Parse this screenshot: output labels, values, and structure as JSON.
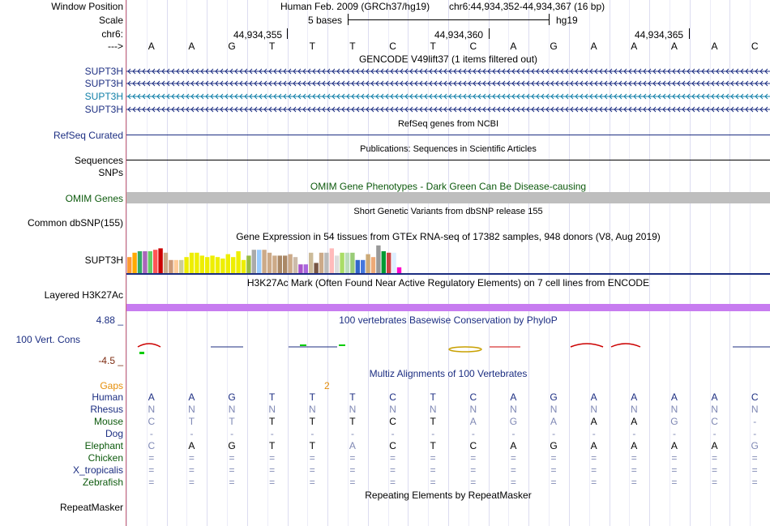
{
  "header": {
    "window_position_label": "Window Position",
    "scale_label": "Scale",
    "chrom_label": "chr6:",
    "arrow_label": "--->",
    "assembly": "Human Feb. 2009 (GRCh37/hg19)",
    "position": "chr6:44,934,352-44,934,367 (16 bp)",
    "scale_text": "5 bases",
    "db": "hg19",
    "ticks": [
      "44,934,355",
      "44,934,360",
      "44,934,365"
    ]
  },
  "sequence": [
    "A",
    "A",
    "G",
    "T",
    "T",
    "T",
    "C",
    "T",
    "C",
    "A",
    "G",
    "A",
    "A",
    "A",
    "A",
    "C"
  ],
  "gencode": {
    "title": "GENCODE V49lift37 (1 items filtered out)",
    "genes": [
      {
        "label": "SUPT3H",
        "color": "#1c2e82"
      },
      {
        "label": "SUPT3H",
        "color": "#1c2e82"
      },
      {
        "label": "SUPT3H",
        "color": "#0e7ea7"
      },
      {
        "label": "SUPT3H",
        "color": "#1c2e82"
      }
    ]
  },
  "refseq": {
    "title": "RefSeq genes from NCBI",
    "label": "RefSeq Curated"
  },
  "publications": {
    "title": "Publications: Sequences in Scientific Articles",
    "label1": "Sequences",
    "label2": "SNPs"
  },
  "omim": {
    "title": "OMIM Gene Phenotypes - Dark Green Can Be Disease-causing",
    "label": "OMIM Genes"
  },
  "dbsnp": {
    "title": "Short Genetic Variants from dbSNP release 155",
    "label": "Common dbSNP(155)"
  },
  "gtex": {
    "title": "Gene Expression in 54 tissues from GTEx RNA-seq of 17382 samples, 948 donors (V8, Aug 2019)",
    "label": "SUPT3H",
    "bars": [
      {
        "c": "#ff9933",
        "v": 0.55
      },
      {
        "c": "#ffaa00",
        "v": 0.7
      },
      {
        "c": "#33aa66",
        "v": 0.75
      },
      {
        "c": "#aa66bb",
        "v": 0.75
      },
      {
        "c": "#66cc66",
        "v": 0.75
      },
      {
        "c": "#ff5555",
        "v": 0.8
      },
      {
        "c": "#cc0000",
        "v": 0.85
      },
      {
        "c": "#ccaa88",
        "v": 0.7
      },
      {
        "c": "#cc9977",
        "v": 0.45
      },
      {
        "c": "#ffcc99",
        "v": 0.45
      },
      {
        "c": "#cccc99",
        "v": 0.45
      },
      {
        "c": "#eeee00",
        "v": 0.55
      },
      {
        "c": "#eeee00",
        "v": 0.7
      },
      {
        "c": "#eeee00",
        "v": 0.7
      },
      {
        "c": "#eeee00",
        "v": 0.6
      },
      {
        "c": "#eeee00",
        "v": 0.55
      },
      {
        "c": "#eeee00",
        "v": 0.6
      },
      {
        "c": "#eeee00",
        "v": 0.55
      },
      {
        "c": "#eeee00",
        "v": 0.5
      },
      {
        "c": "#eeee00",
        "v": 0.65
      },
      {
        "c": "#eeee00",
        "v": 0.55
      },
      {
        "c": "#eeee00",
        "v": 0.75
      },
      {
        "c": "#eeee00",
        "v": 0.45
      },
      {
        "c": "#99bb44",
        "v": 0.6
      },
      {
        "c": "#aaaaaa",
        "v": 0.8
      },
      {
        "c": "#99ccff",
        "v": 0.8
      },
      {
        "c": "#ccaa88",
        "v": 0.8
      },
      {
        "c": "#ccaa88",
        "v": 0.7
      },
      {
        "c": "#ccaa88",
        "v": 0.6
      },
      {
        "c": "#aa8866",
        "v": 0.6
      },
      {
        "c": "#aa8866",
        "v": 0.6
      },
      {
        "c": "#ccaa88",
        "v": 0.65
      },
      {
        "c": "#ccbbaa",
        "v": 0.55
      },
      {
        "c": "#aa55cc",
        "v": 0.3
      },
      {
        "c": "#aa66dd",
        "v": 0.3
      },
      {
        "c": "#ccbb99",
        "v": 0.7
      },
      {
        "c": "#775544",
        "v": 0.35
      },
      {
        "c": "#ccaa88",
        "v": 0.7
      },
      {
        "c": "#bbbbbb",
        "v": 0.7
      },
      {
        "c": "#ffbbbb",
        "v": 0.85
      },
      {
        "c": "#dddddd",
        "v": 0.6
      },
      {
        "c": "#aadd66",
        "v": 0.7
      },
      {
        "c": "#bbddbb",
        "v": 0.7
      },
      {
        "c": "#99cc77",
        "v": 0.7
      },
      {
        "c": "#3366cc",
        "v": 0.45
      },
      {
        "c": "#4477dd",
        "v": 0.45
      },
      {
        "c": "#ccaa77",
        "v": 0.65
      },
      {
        "c": "#eeaa77",
        "v": 0.55
      },
      {
        "c": "#999999",
        "v": 0.95
      },
      {
        "c": "#009933",
        "v": 0.75
      },
      {
        "c": "#cc4444",
        "v": 0.7
      },
      {
        "c": "#ddeeff",
        "v": 0.7
      },
      {
        "c": "#ff00cc",
        "v": 0.2
      },
      {
        "c": "#ffffff",
        "v": 0.0
      }
    ]
  },
  "h3k27ac": {
    "title": "H3K27Ac Mark (Often Found Near Active Regulatory Elements) on 7 cell lines from ENCODE",
    "label": "Layered H3K27Ac"
  },
  "phylop": {
    "title": "100 vertebrates Basewise Conservation by PhyloP",
    "label": "100 Vert. Cons",
    "max": "4.88 _",
    "min": "-4.5 _"
  },
  "multiz": {
    "title": "Multiz Alignments of 100 Vertebrates",
    "gaps_label": "Gaps",
    "gap_count": "2",
    "species": [
      {
        "name": "Human",
        "color": "#1c2e82",
        "bases": [
          "A",
          "A",
          "G",
          "T",
          "T",
          "T",
          "C",
          "T",
          "C",
          "A",
          "G",
          "A",
          "A",
          "A",
          "A",
          "C"
        ]
      },
      {
        "name": "Rhesus",
        "color": "#1c2e82",
        "bases": [
          "N",
          "N",
          "N",
          "N",
          "N",
          "N",
          "N",
          "N",
          "N",
          "N",
          "N",
          "N",
          "N",
          "N",
          "N",
          "N"
        ]
      },
      {
        "name": "Mouse",
        "color": "#0d5a0d",
        "bases": [
          "C",
          "T",
          "T",
          "T",
          "T",
          "T",
          "C",
          "T",
          "A",
          "G",
          "A",
          "A",
          "A",
          "G",
          "C",
          "-"
        ]
      },
      {
        "name": "Dog",
        "color": "#1c2e82",
        "bases": [
          "-",
          "-",
          "-",
          "-",
          "-",
          "-",
          "-",
          "-",
          "-",
          "-",
          "-",
          "-",
          "-",
          "-",
          "-",
          "-"
        ]
      },
      {
        "name": "Elephant",
        "color": "#0d5a0d",
        "bases": [
          "C",
          "A",
          "G",
          "T",
          "T",
          "A",
          "C",
          "T",
          "C",
          "A",
          "G",
          "A",
          "A",
          "A",
          "A",
          "G"
        ]
      },
      {
        "name": "Chicken",
        "color": "#0d5a0d",
        "bases": [
          "=",
          "=",
          "=",
          "=",
          "=",
          "=",
          "=",
          "=",
          "=",
          "=",
          "=",
          "=",
          "=",
          "=",
          "=",
          "="
        ]
      },
      {
        "name": "X_tropicalis",
        "color": "#1c2e82",
        "bases": [
          "=",
          "=",
          "=",
          "=",
          "=",
          "=",
          "=",
          "=",
          "=",
          "=",
          "=",
          "=",
          "=",
          "=",
          "=",
          "="
        ]
      },
      {
        "name": "Zebrafish",
        "color": "#0d5a0d",
        "bases": [
          "=",
          "=",
          "=",
          "=",
          "=",
          "=",
          "=",
          "=",
          "=",
          "=",
          "=",
          "=",
          "=",
          "=",
          "=",
          "="
        ]
      }
    ]
  },
  "repeatmasker": {
    "title": "Repeating Elements by RepeatMasker",
    "label": "RepeatMasker"
  }
}
